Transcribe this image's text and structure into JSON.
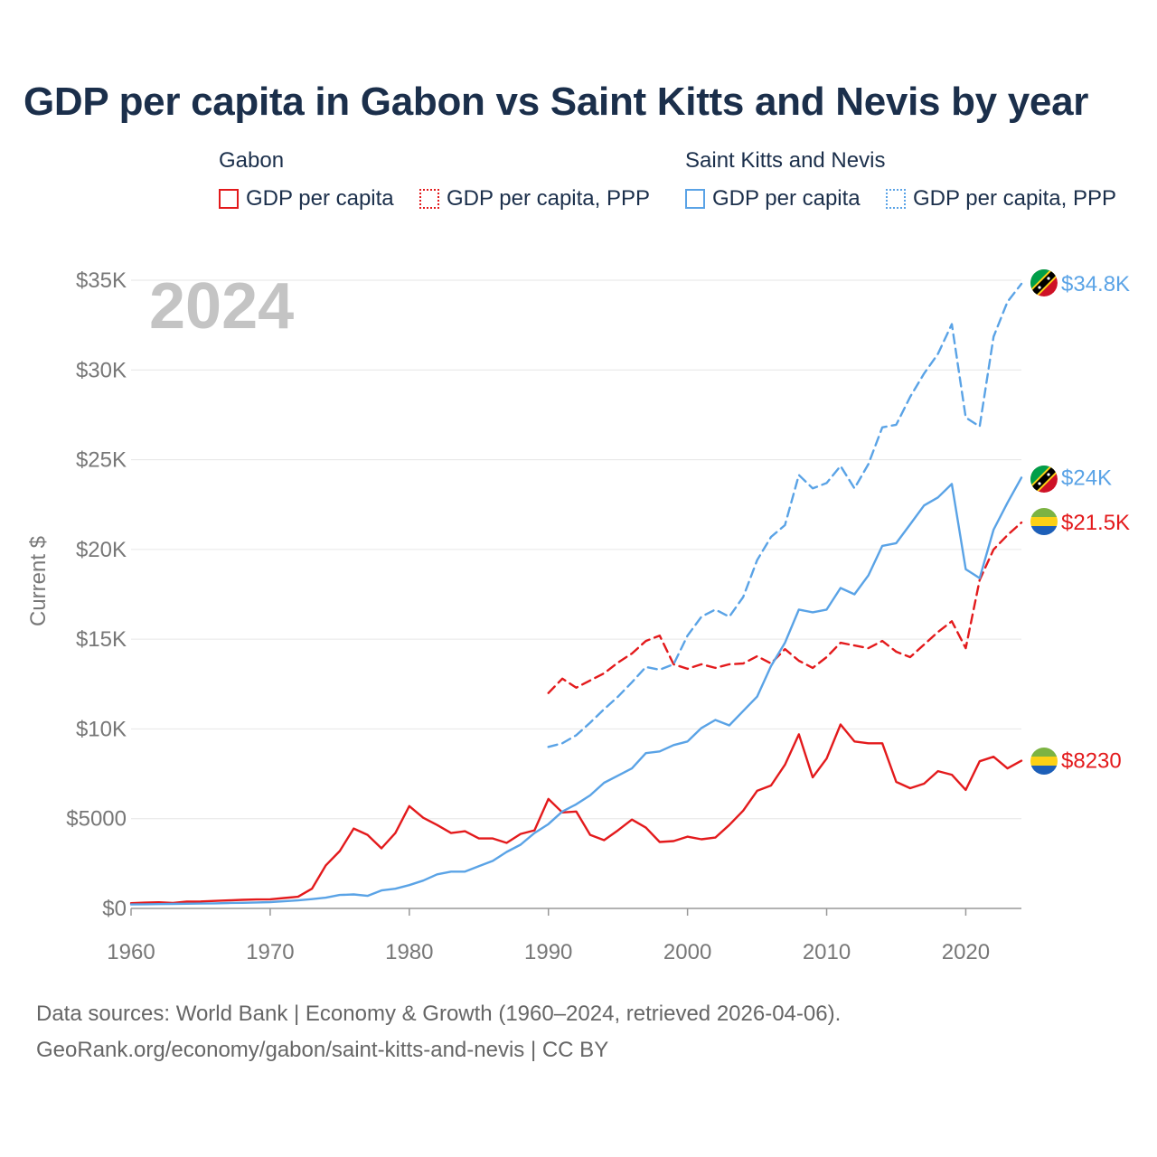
{
  "title": "GDP per capita in Gabon vs Saint Kitts and Nevis by year",
  "legend": {
    "groups": [
      {
        "name": "Gabon",
        "items": [
          {
            "label": "GDP per capita",
            "style": "solid",
            "color": "#e31a1c"
          },
          {
            "label": "GDP per capita, PPP",
            "style": "dotted",
            "color": "#e31a1c"
          }
        ]
      },
      {
        "name": "Saint Kitts and Nevis",
        "items": [
          {
            "label": "GDP per capita",
            "style": "solid",
            "color": "#5aa3e6"
          },
          {
            "label": "GDP per capita, PPP",
            "style": "dotted",
            "color": "#5aa3e6"
          }
        ]
      }
    ]
  },
  "footer": {
    "line1": "Data sources: World Bank | Economy & Growth (1960–2024, retrieved 2026-04-06).",
    "line2": "GeoRank.org/economy/gabon/saint-kitts-and-nevis | CC BY"
  },
  "chart_data": {
    "type": "line",
    "title": "GDP per capita in Gabon vs Saint Kitts and Nevis by year",
    "year_watermark": "2024",
    "xlabel": "",
    "ylabel": "Current $",
    "xlim": [
      1960,
      2024
    ],
    "ylim": [
      0,
      35000
    ],
    "x_ticks": [
      1960,
      1970,
      1980,
      1990,
      2000,
      2010,
      2020
    ],
    "x_tick_labels": [
      "1960",
      "1970",
      "1980",
      "1990",
      "2000",
      "2010",
      "2020"
    ],
    "y_ticks": [
      0,
      5000,
      10000,
      15000,
      20000,
      25000,
      30000,
      35000
    ],
    "y_tick_labels": [
      "$0",
      "$5000",
      "$10K",
      "$15K",
      "$20K",
      "$25K",
      "$30K",
      "$35K"
    ],
    "grid": true,
    "series": [
      {
        "name": "Gabon GDP per capita",
        "country": "Gabon",
        "color": "#e31a1c",
        "dash": "solid",
        "end_label": "$8230",
        "x": [
          1960,
          1961,
          1962,
          1963,
          1964,
          1965,
          1966,
          1967,
          1968,
          1969,
          1970,
          1971,
          1972,
          1973,
          1974,
          1975,
          1976,
          1977,
          1978,
          1979,
          1980,
          1981,
          1982,
          1983,
          1984,
          1985,
          1986,
          1987,
          1988,
          1989,
          1990,
          1991,
          1992,
          1993,
          1994,
          1995,
          1996,
          1997,
          1998,
          1999,
          2000,
          2001,
          2002,
          2003,
          2004,
          2005,
          2006,
          2007,
          2008,
          2009,
          2010,
          2011,
          2012,
          2013,
          2014,
          2015,
          2016,
          2017,
          2018,
          2019,
          2020,
          2021,
          2022,
          2023,
          2024
        ],
        "values": [
          290,
          320,
          340,
          300,
          380,
          390,
          420,
          450,
          480,
          500,
          510,
          580,
          650,
          1100,
          2400,
          3200,
          4450,
          4100,
          3350,
          4200,
          5700,
          5050,
          4650,
          4200,
          4300,
          3900,
          3900,
          3650,
          4150,
          4350,
          6100,
          5350,
          5400,
          4100,
          3800,
          4350,
          4950,
          4500,
          3700,
          3750,
          4000,
          3850,
          3950,
          4650,
          5450,
          6550,
          6850,
          8000,
          9700,
          7300,
          8350,
          10250,
          9300,
          9200,
          9200,
          7050,
          6700,
          6950,
          7650,
          7450,
          6600,
          8200,
          8450,
          7800,
          8230
        ]
      },
      {
        "name": "Gabon GDP per capita, PPP",
        "country": "Gabon",
        "color": "#e31a1c",
        "dash": "dashed",
        "end_label": "$21.5K",
        "x": [
          1990,
          1991,
          1992,
          1993,
          1994,
          1995,
          1996,
          1997,
          1998,
          1999,
          2000,
          2001,
          2002,
          2003,
          2004,
          2005,
          2006,
          2007,
          2008,
          2009,
          2010,
          2011,
          2012,
          2013,
          2014,
          2015,
          2016,
          2017,
          2018,
          2019,
          2020,
          2021,
          2022,
          2023,
          2024
        ],
        "values": [
          12000,
          12800,
          12300,
          12700,
          13100,
          13700,
          14200,
          14900,
          15200,
          13600,
          13350,
          13600,
          13400,
          13600,
          13650,
          14050,
          13650,
          14450,
          13800,
          13400,
          14000,
          14800,
          14650,
          14500,
          14900,
          14300,
          14000,
          14700,
          15400,
          16000,
          14500,
          18300,
          20000,
          20800,
          21500
        ]
      },
      {
        "name": "Saint Kitts and Nevis GDP per capita",
        "country": "Saint Kitts and Nevis",
        "color": "#5aa3e6",
        "dash": "solid",
        "end_label": "$24K",
        "x": [
          1960,
          1961,
          1962,
          1963,
          1964,
          1965,
          1966,
          1967,
          1968,
          1969,
          1970,
          1971,
          1972,
          1973,
          1974,
          1975,
          1976,
          1977,
          1978,
          1979,
          1980,
          1981,
          1982,
          1983,
          1984,
          1985,
          1986,
          1987,
          1988,
          1989,
          1990,
          1991,
          1992,
          1993,
          1994,
          1995,
          1996,
          1997,
          1998,
          1999,
          2000,
          2001,
          2002,
          2003,
          2004,
          2005,
          2006,
          2007,
          2008,
          2009,
          2010,
          2011,
          2012,
          2013,
          2014,
          2015,
          2016,
          2017,
          2018,
          2019,
          2020,
          2021,
          2022,
          2023,
          2024
        ],
        "values": [
          220,
          230,
          240,
          250,
          260,
          270,
          280,
          300,
          310,
          330,
          350,
          400,
          450,
          520,
          600,
          750,
          780,
          700,
          1000,
          1100,
          1300,
          1550,
          1900,
          2050,
          2050,
          2350,
          2650,
          3150,
          3550,
          4200,
          4700,
          5400,
          5800,
          6300,
          7000,
          7400,
          7800,
          8650,
          8750,
          9100,
          9300,
          10050,
          10500,
          10200,
          11000,
          11800,
          13500,
          14800,
          16650,
          16500,
          16650,
          17850,
          17500,
          18550,
          20200,
          20350,
          21400,
          22450,
          22900,
          23650,
          18900,
          18400,
          21100,
          22600,
          24000
        ]
      },
      {
        "name": "Saint Kitts and Nevis GDP per capita, PPP",
        "country": "Saint Kitts and Nevis",
        "color": "#5aa3e6",
        "dash": "dashed",
        "end_label": "$34.8K",
        "x": [
          1990,
          1991,
          1992,
          1993,
          1994,
          1995,
          1996,
          1997,
          1998,
          1999,
          2000,
          2001,
          2002,
          2003,
          2004,
          2005,
          2006,
          2007,
          2008,
          2009,
          2010,
          2011,
          2012,
          2013,
          2014,
          2015,
          2016,
          2017,
          2018,
          2019,
          2020,
          2021,
          2022,
          2023,
          2024
        ],
        "values": [
          9000,
          9200,
          9650,
          10350,
          11100,
          11800,
          12600,
          13450,
          13300,
          13600,
          15200,
          16250,
          16650,
          16250,
          17350,
          19400,
          20700,
          21350,
          24150,
          23400,
          23700,
          24650,
          23400,
          24750,
          26800,
          26950,
          28500,
          29800,
          30900,
          32550,
          27350,
          26850,
          31850,
          33800,
          34800
        ]
      }
    ]
  }
}
